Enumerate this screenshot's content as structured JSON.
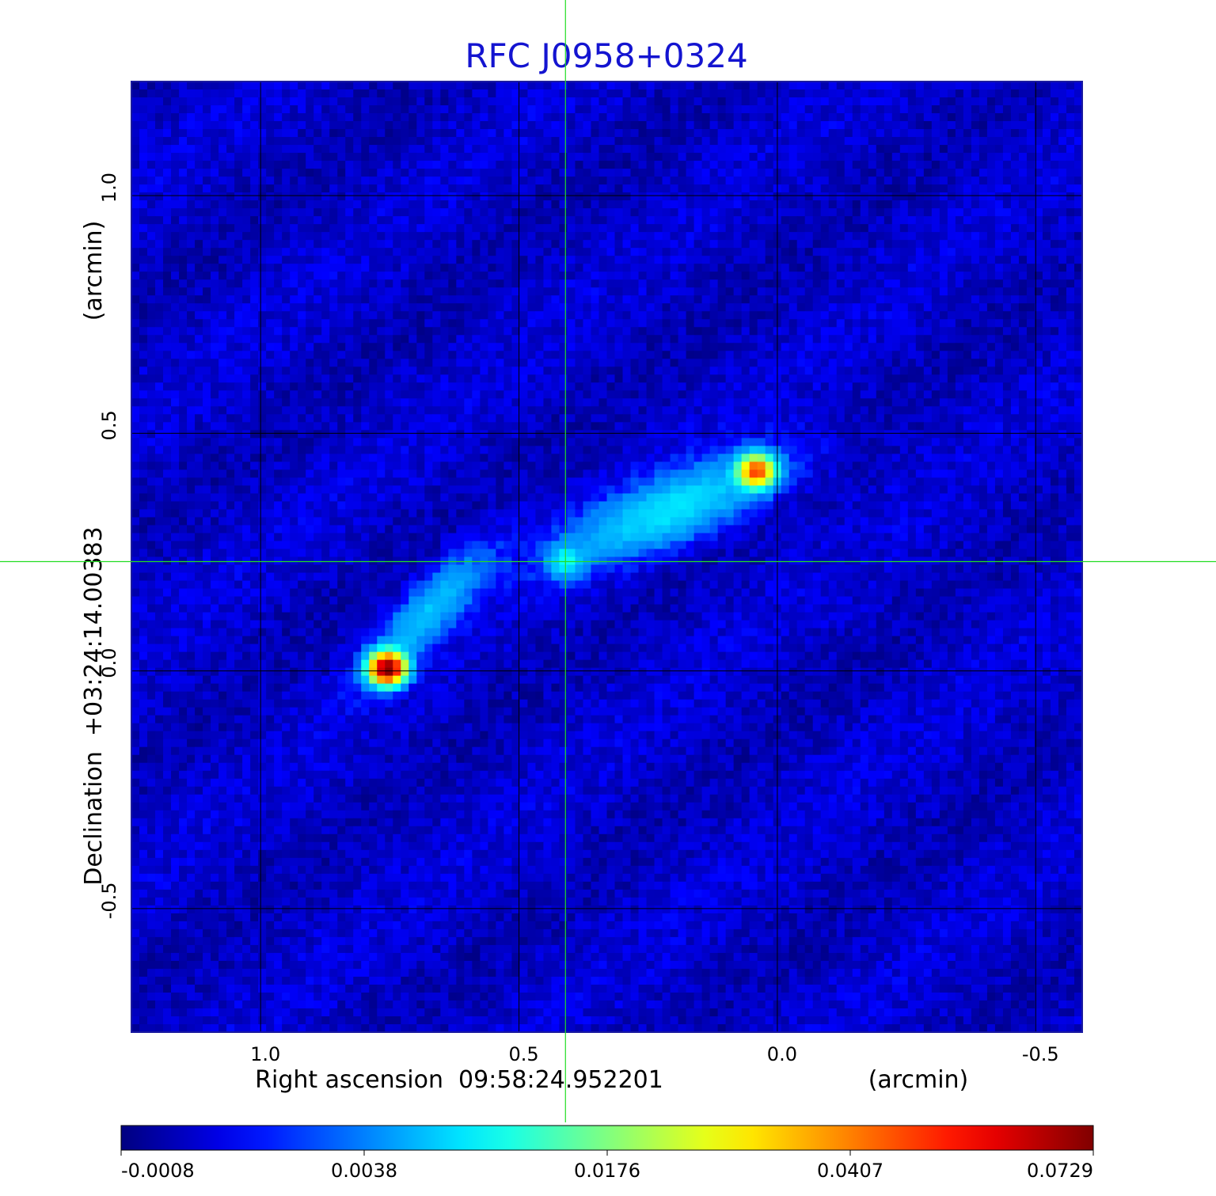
{
  "chart_data": {
    "type": "heatmap",
    "title": "RFC J0958+0324",
    "xlabel": "Right ascension  09:58:24.952201",
    "xunit": "(arcmin)",
    "ylabel": "Declination  +03:24:14.00383",
    "yunit": "(arcmin)",
    "x_axis_direction": "reversed",
    "xlim": [
      1.25,
      -0.59
    ],
    "ylim": [
      -0.76,
      1.24
    ],
    "x_ticks": [
      {
        "value": 1.0,
        "label": "1.0"
      },
      {
        "value": 0.5,
        "label": "0.5"
      },
      {
        "value": 0.0,
        "label": "0.0"
      },
      {
        "value": -0.5,
        "label": "-0.5"
      }
    ],
    "y_ticks": [
      {
        "value": 1.0,
        "label": "1.0"
      },
      {
        "value": 0.5,
        "label": "0.5"
      },
      {
        "value": 0.0,
        "label": "0.0"
      },
      {
        "value": -0.5,
        "label": "-0.5"
      }
    ],
    "grid": true,
    "crosshair": {
      "x": 0.41,
      "y": 0.23,
      "color": "#22dd22"
    },
    "colorbar": {
      "colormap": "jet",
      "labels": [
        "-0.0008",
        "0.0038",
        "0.0176",
        "0.0407",
        "0.0729"
      ],
      "min": -0.0008,
      "max": 0.0729
    },
    "background_level": 0.0005,
    "components": [
      {
        "name": "core",
        "x": 0.41,
        "y": 0.23,
        "peak": 0.0085,
        "sigma_x": 0.022,
        "sigma_y": 0.022,
        "angle_deg": 0
      },
      {
        "name": "south-east hotspot",
        "x": 0.755,
        "y": 0.005,
        "peak": 0.0729,
        "sigma_x": 0.022,
        "sigma_y": 0.021,
        "angle_deg": 0
      },
      {
        "name": "south-east jet",
        "x": 0.675,
        "y": 0.125,
        "peak": 0.0068,
        "sigma_x": 0.11,
        "sigma_y": 0.032,
        "angle_deg": 50
      },
      {
        "name": "north-west hotspot",
        "x": 0.04,
        "y": 0.42,
        "peak": 0.045,
        "sigma_x": 0.022,
        "sigma_y": 0.021,
        "angle_deg": 0
      },
      {
        "name": "north-west lobe",
        "x": 0.2,
        "y": 0.34,
        "peak": 0.0088,
        "sigma_x": 0.15,
        "sigma_y": 0.045,
        "angle_deg": 24
      }
    ]
  }
}
